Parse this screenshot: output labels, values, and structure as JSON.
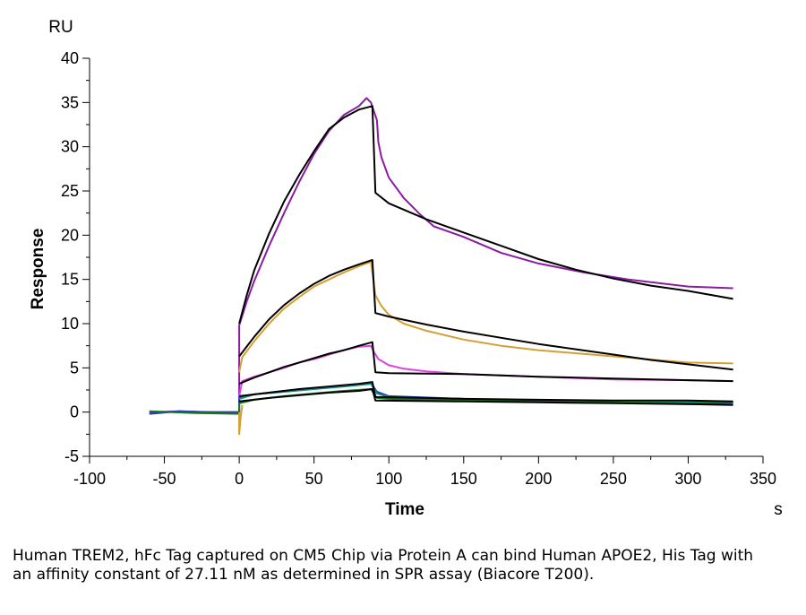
{
  "chart_data": {
    "type": "line",
    "title": "",
    "xlabel": "Time",
    "ylabel": "Response",
    "x_unit": "s",
    "y_unit": "RU",
    "xlim": [
      -100,
      350
    ],
    "ylim": [
      -5,
      40
    ],
    "x_ticks": [
      -100,
      -50,
      0,
      50,
      100,
      150,
      200,
      250,
      300,
      350
    ],
    "y_ticks": [
      -5,
      0,
      5,
      10,
      15,
      20,
      25,
      30,
      35,
      40
    ],
    "grid": false,
    "series": [
      {
        "color": "#8b1aa6",
        "points": [
          [
            -60,
            0
          ],
          [
            -40,
            0.1
          ],
          [
            -20,
            0
          ],
          [
            0,
            0
          ],
          [
            0,
            9.8
          ],
          [
            5,
            12.5
          ],
          [
            10,
            14.8
          ],
          [
            20,
            18.8
          ],
          [
            30,
            22.5
          ],
          [
            40,
            26
          ],
          [
            50,
            29.2
          ],
          [
            60,
            31.8
          ],
          [
            70,
            33.6
          ],
          [
            80,
            34.6
          ],
          [
            85,
            35.5
          ],
          [
            88,
            35
          ],
          [
            92,
            33
          ],
          [
            93,
            30.5
          ],
          [
            95,
            28.8
          ],
          [
            100,
            26.5
          ],
          [
            110,
            24.2
          ],
          [
            120,
            22.5
          ],
          [
            130,
            21
          ],
          [
            150,
            19.8
          ],
          [
            175,
            18
          ],
          [
            200,
            16.8
          ],
          [
            230,
            15.8
          ],
          [
            260,
            15
          ],
          [
            300,
            14.2
          ],
          [
            330,
            14
          ]
        ]
      },
      {
        "color": "#000000",
        "points": [
          [
            0,
            10
          ],
          [
            5,
            13.2
          ],
          [
            10,
            16
          ],
          [
            20,
            20.2
          ],
          [
            30,
            23.8
          ],
          [
            40,
            26.8
          ],
          [
            50,
            29.5
          ],
          [
            60,
            32
          ],
          [
            70,
            33.3
          ],
          [
            80,
            34.2
          ],
          [
            89,
            34.6
          ],
          [
            91,
            24.8
          ],
          [
            100,
            23.6
          ],
          [
            125,
            21.8
          ],
          [
            150,
            20.3
          ],
          [
            175,
            18.8
          ],
          [
            200,
            17.3
          ],
          [
            225,
            16.1
          ],
          [
            250,
            15.1
          ],
          [
            275,
            14.3
          ],
          [
            300,
            13.7
          ],
          [
            330,
            12.8
          ]
        ]
      },
      {
        "color": "#d3a133",
        "points": [
          [
            0,
            4.5
          ],
          [
            2,
            6.2
          ],
          [
            10,
            8
          ],
          [
            20,
            10
          ],
          [
            30,
            11.7
          ],
          [
            40,
            13
          ],
          [
            50,
            14.2
          ],
          [
            60,
            15
          ],
          [
            70,
            15.8
          ],
          [
            80,
            16.5
          ],
          [
            88,
            17
          ],
          [
            91,
            13.2
          ],
          [
            95,
            12
          ],
          [
            100,
            11
          ],
          [
            110,
            10
          ],
          [
            125,
            9.2
          ],
          [
            150,
            8.2
          ],
          [
            175,
            7.5
          ],
          [
            200,
            7
          ],
          [
            250,
            6.3
          ],
          [
            300,
            5.6
          ],
          [
            330,
            5.5
          ]
        ]
      },
      {
        "color": "#000000",
        "points": [
          [
            0,
            6.3
          ],
          [
            10,
            8.5
          ],
          [
            20,
            10.5
          ],
          [
            30,
            12.1
          ],
          [
            40,
            13.4
          ],
          [
            50,
            14.5
          ],
          [
            60,
            15.4
          ],
          [
            70,
            16.1
          ],
          [
            80,
            16.7
          ],
          [
            89,
            17.2
          ],
          [
            91,
            11.2
          ],
          [
            100,
            10.8
          ],
          [
            125,
            9.9
          ],
          [
            150,
            9.1
          ],
          [
            175,
            8.4
          ],
          [
            200,
            7.7
          ],
          [
            225,
            7.1
          ],
          [
            250,
            6.5
          ],
          [
            275,
            5.9
          ],
          [
            300,
            5.4
          ],
          [
            330,
            4.8
          ]
        ]
      },
      {
        "color": "#e040e0",
        "points": [
          [
            0,
            1.8
          ],
          [
            2,
            3.5
          ],
          [
            10,
            4
          ],
          [
            20,
            4.5
          ],
          [
            30,
            5
          ],
          [
            40,
            5.6
          ],
          [
            50,
            6
          ],
          [
            60,
            6.5
          ],
          [
            70,
            7
          ],
          [
            80,
            7.4
          ],
          [
            88,
            7.5
          ],
          [
            90,
            6.8
          ],
          [
            93,
            6
          ],
          [
            100,
            5.3
          ],
          [
            110,
            4.9
          ],
          [
            125,
            4.6
          ],
          [
            150,
            4.3
          ],
          [
            200,
            4
          ],
          [
            250,
            3.7
          ],
          [
            300,
            3.6
          ],
          [
            330,
            3.5
          ]
        ]
      },
      {
        "color": "#000000",
        "points": [
          [
            0,
            3.2
          ],
          [
            10,
            3.9
          ],
          [
            20,
            4.5
          ],
          [
            30,
            5.1
          ],
          [
            40,
            5.6
          ],
          [
            50,
            6.1
          ],
          [
            60,
            6.6
          ],
          [
            70,
            7
          ],
          [
            80,
            7.5
          ],
          [
            89,
            7.9
          ],
          [
            91,
            4.5
          ],
          [
            100,
            4.4
          ],
          [
            150,
            4.3
          ],
          [
            200,
            4
          ],
          [
            250,
            3.8
          ],
          [
            300,
            3.6
          ],
          [
            330,
            3.5
          ]
        ]
      },
      {
        "color": "#1f3fb8",
        "points": [
          [
            -60,
            -0.2
          ],
          [
            -40,
            0.1
          ],
          [
            -20,
            0
          ],
          [
            0,
            0
          ],
          [
            0,
            1.6
          ],
          [
            10,
            2
          ],
          [
            30,
            2.4
          ],
          [
            50,
            2.7
          ],
          [
            70,
            3
          ],
          [
            88,
            3.3
          ],
          [
            92,
            2.3
          ],
          [
            100,
            1.8
          ],
          [
            150,
            1.5
          ],
          [
            200,
            1.2
          ],
          [
            250,
            1.1
          ],
          [
            300,
            0.9
          ],
          [
            330,
            1
          ]
        ]
      },
      {
        "color": "#1c8a8a",
        "points": [
          [
            0,
            1.5
          ],
          [
            10,
            2
          ],
          [
            30,
            2.3
          ],
          [
            50,
            2.6
          ],
          [
            70,
            2.9
          ],
          [
            88,
            3.2
          ],
          [
            92,
            2.1
          ],
          [
            100,
            1.7
          ],
          [
            150,
            1.4
          ],
          [
            200,
            1.2
          ],
          [
            250,
            1.1
          ],
          [
            300,
            1.1
          ],
          [
            330,
            1.1
          ]
        ]
      },
      {
        "color": "#1a7a1a",
        "points": [
          [
            -60,
            0.1
          ],
          [
            -30,
            -0.1
          ],
          [
            0,
            -0.2
          ],
          [
            0,
            1
          ],
          [
            10,
            1.4
          ],
          [
            30,
            1.8
          ],
          [
            50,
            2.1
          ],
          [
            70,
            2.4
          ],
          [
            88,
            2.6
          ],
          [
            92,
            1.6
          ],
          [
            100,
            1.5
          ],
          [
            150,
            1.3
          ],
          [
            200,
            1.2
          ],
          [
            250,
            1.1
          ],
          [
            300,
            1
          ],
          [
            330,
            1.1
          ]
        ]
      },
      {
        "color": "#000000",
        "points": [
          [
            0,
            1.8
          ],
          [
            20,
            2.2
          ],
          [
            40,
            2.6
          ],
          [
            60,
            2.9
          ],
          [
            80,
            3.2
          ],
          [
            89,
            3.4
          ],
          [
            91,
            1.7
          ],
          [
            125,
            1.6
          ],
          [
            150,
            1.5
          ],
          [
            200,
            1.4
          ],
          [
            250,
            1.3
          ],
          [
            300,
            1.3
          ],
          [
            330,
            1.2
          ]
        ]
      },
      {
        "color": "#000000",
        "points": [
          [
            0,
            1.2
          ],
          [
            20,
            1.6
          ],
          [
            40,
            1.9
          ],
          [
            60,
            2.2
          ],
          [
            80,
            2.4
          ],
          [
            89,
            2.6
          ],
          [
            91,
            1.3
          ],
          [
            150,
            1.2
          ],
          [
            200,
            1.1
          ],
          [
            250,
            1
          ],
          [
            300,
            0.9
          ],
          [
            330,
            0.8
          ]
        ]
      },
      {
        "color": "#d3a133",
        "points": [
          [
            0,
            0
          ],
          [
            0,
            -2.5
          ],
          [
            1,
            -0.5
          ],
          [
            2,
            0.8
          ]
        ]
      }
    ],
    "caption": "Human TREM2, hFc Tag captured on CM5 Chip via Protein A can bind Human APOE2, His Tag with an affinity constant of 27.11 nM as determined in SPR assay (Biacore T200)."
  }
}
